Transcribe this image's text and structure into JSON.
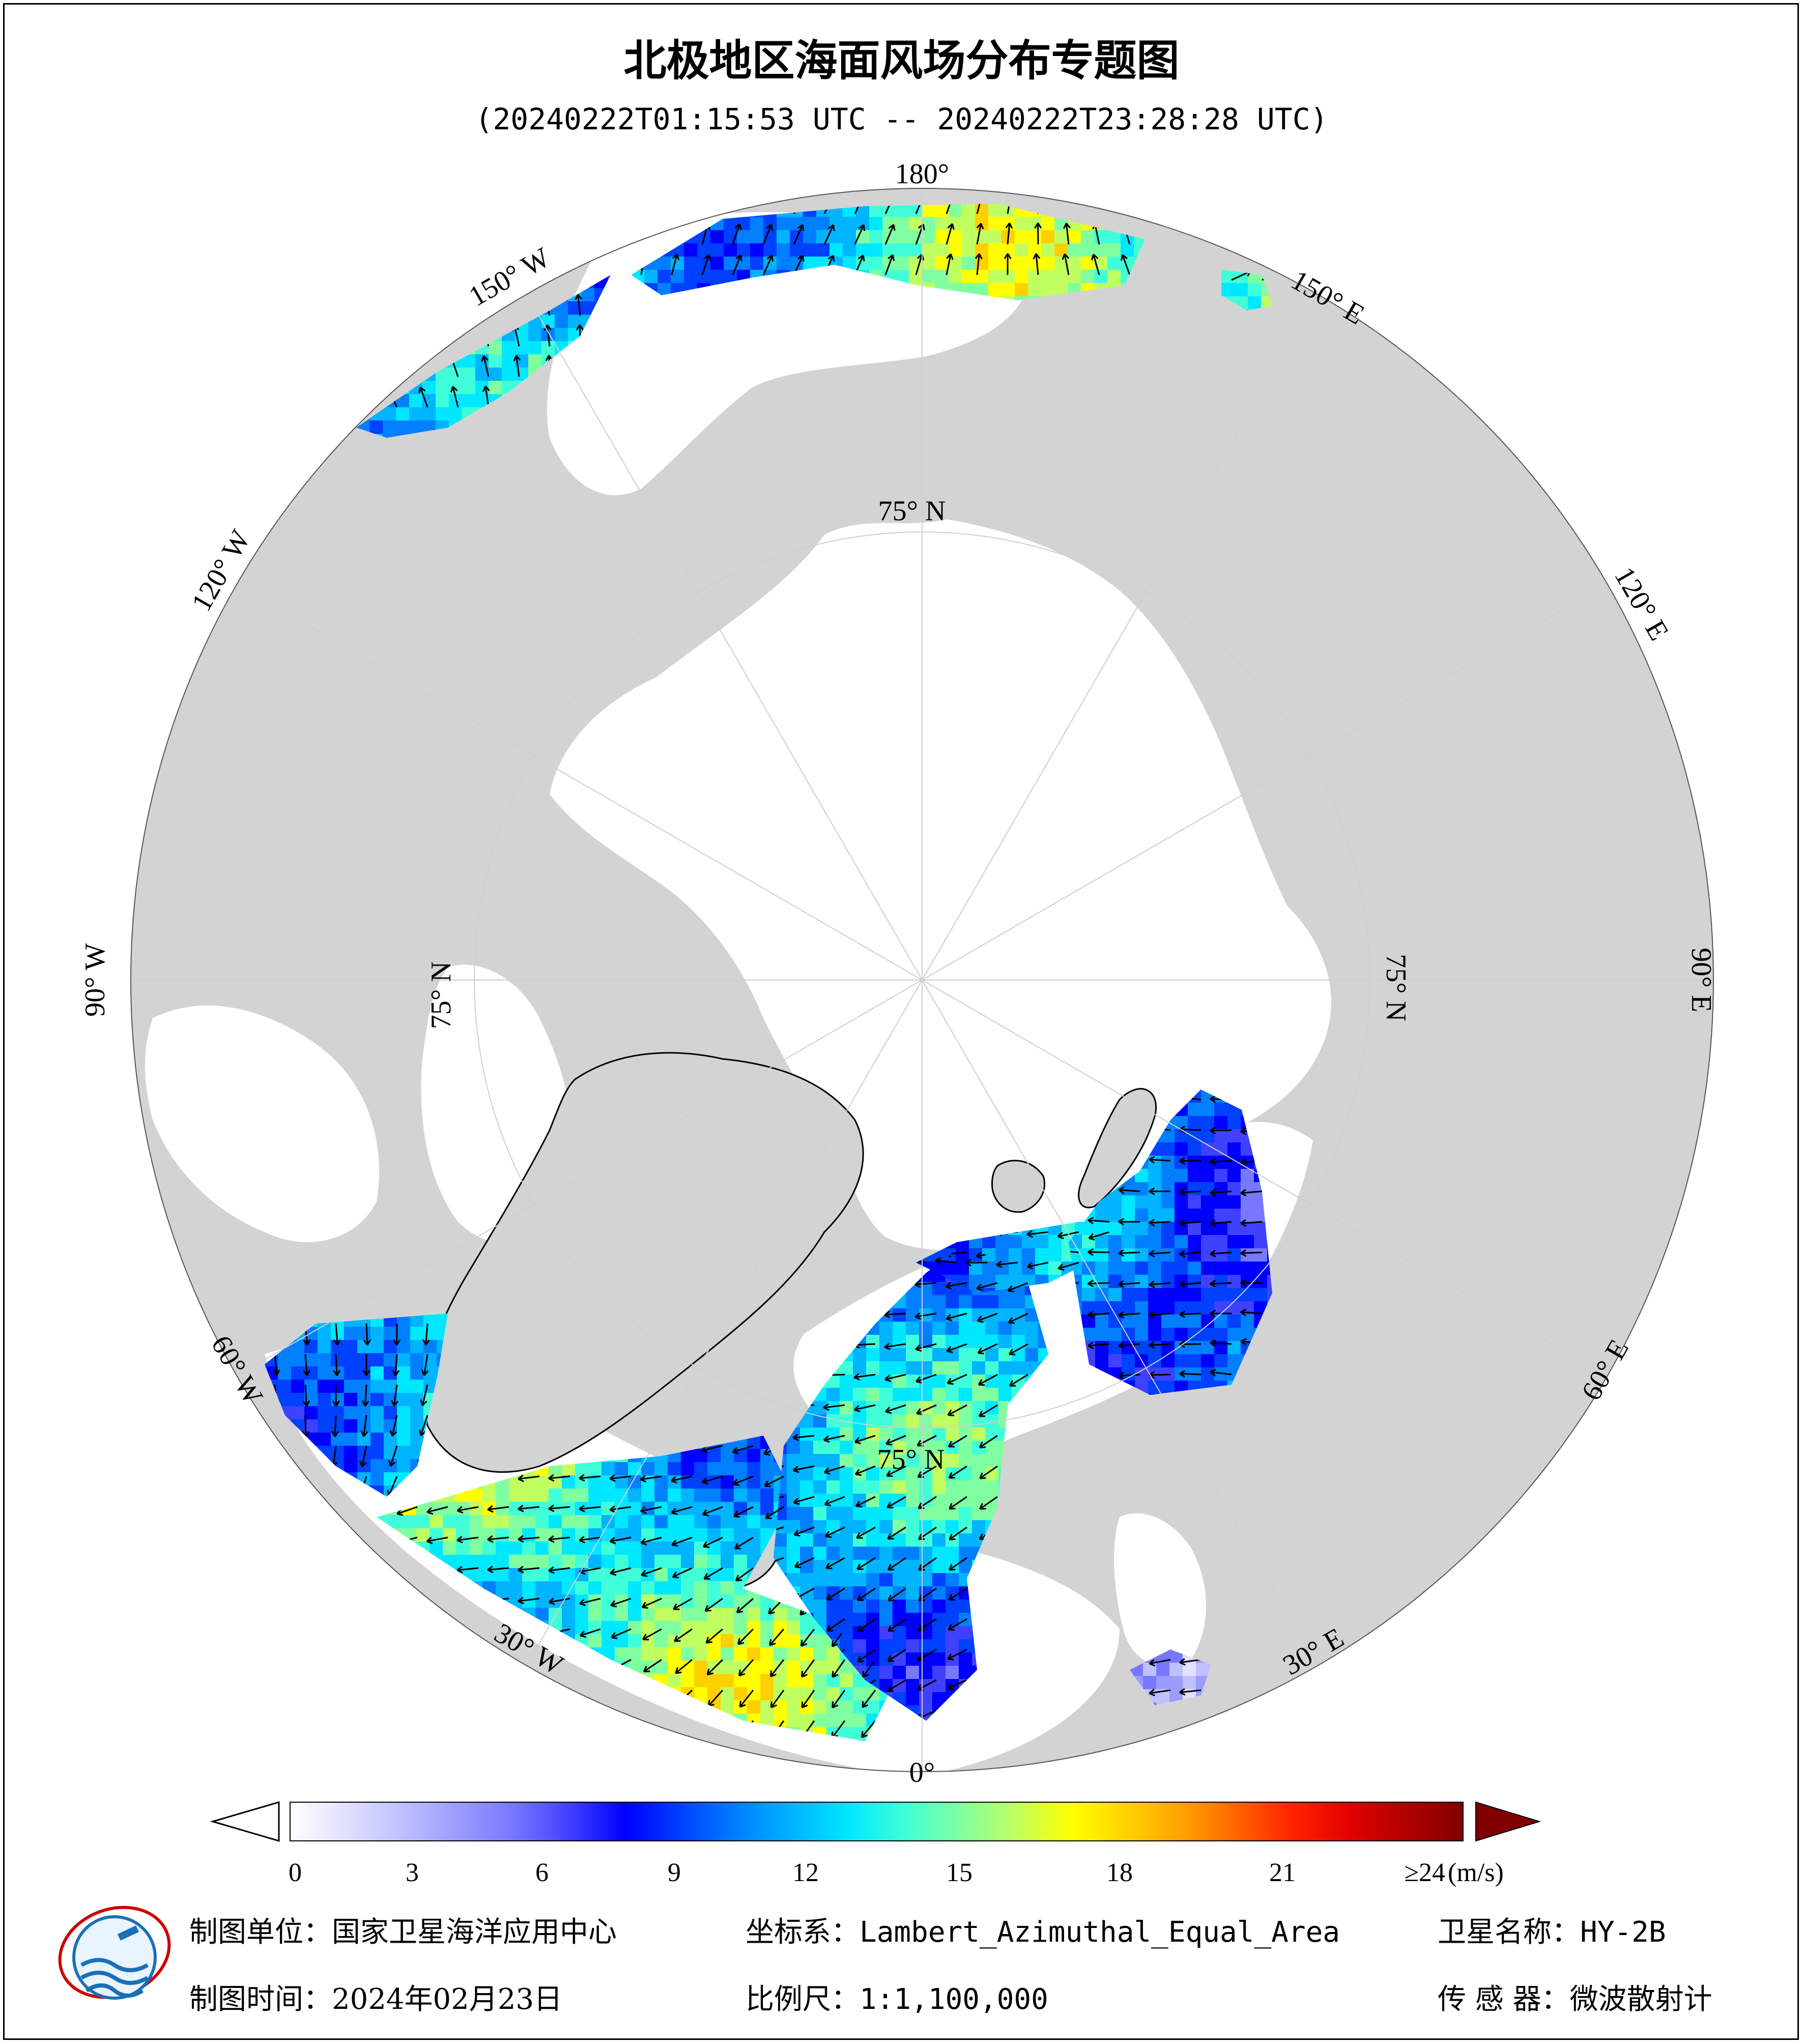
{
  "title": "北极地区海面风场分布专题图",
  "subtitle": "(20240222T01:15:53 UTC -- 20240222T23:28:28 UTC)",
  "graticule": {
    "lon_labels": [
      "180°",
      "150° E",
      "120° E",
      "90° E",
      "60° E",
      "30° E",
      "0°",
      "30° W",
      "60° W",
      "90° W",
      "120° W",
      "150° W"
    ],
    "lat_label": "75° N"
  },
  "colorbar": {
    "ticks": [
      "0",
      "3",
      "6",
      "9",
      "12",
      "15",
      "18",
      "21"
    ],
    "max_label": "≥24",
    "unit": "(m/s)",
    "colors": [
      "#ffffff",
      "#e0e0ff",
      "#c0c0ff",
      "#9c9cff",
      "#7878ff",
      "#4040ff",
      "#0000ff",
      "#0040ff",
      "#0080ff",
      "#00b4ff",
      "#00e8ff",
      "#40ffd8",
      "#80ffa0",
      "#c0ff60",
      "#ffff00",
      "#ffd000",
      "#ffa000",
      "#ff6000",
      "#ff2000",
      "#e00000",
      "#b00000",
      "#800000"
    ]
  },
  "map_colors": {
    "land": "#d3d3d3",
    "sea_ice": "#ffffff",
    "coast": "#000000",
    "vector": "#000000"
  },
  "footer": {
    "org_label": "制图单位：",
    "org_value": "国家卫星海洋应用中心",
    "coord_label": "坐标系：",
    "coord_value": "Lambert_Azimuthal_Equal_Area",
    "sat_label": "卫星名称：",
    "sat_value": "HY-2B",
    "time_label": "制图时间：",
    "time_value": "2024年02月23日",
    "scale_label": "比例尺：",
    "scale_value": "1:1,100,000",
    "sensor_label": "传 感 器：",
    "sensor_value": "微波散射计"
  }
}
